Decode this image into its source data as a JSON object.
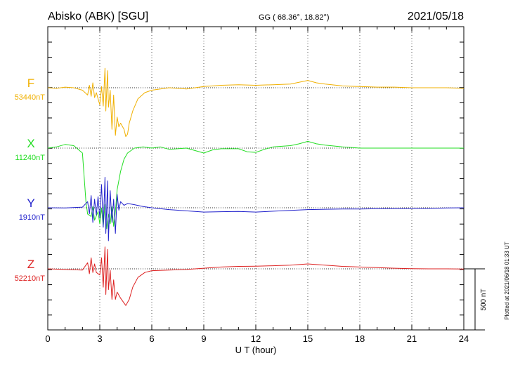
{
  "header": {
    "station": "Abisko (ABK)  [SGU]",
    "coords": "GG ( 68.36°,  18.82°)",
    "date": "2021/05/18"
  },
  "side_note": "Plotted at 2021/06/18 01:33 UT",
  "chart_data": {
    "type": "line",
    "title": "Abisko (ABK)  [SGU]",
    "xlabel": "U T (hour)",
    "x_ticks": [
      "0",
      "3",
      "6",
      "9",
      "12",
      "15",
      "18",
      "21",
      "24"
    ],
    "xlim": [
      0,
      24
    ],
    "scale_label": "500 nT",
    "scale_nT": 500,
    "grid": true,
    "series": [
      {
        "name": "F",
        "baseline_label": "53440nT",
        "baseline_nT": 53440,
        "color": "#f0b000",
        "points": [
          [
            0,
            53440
          ],
          [
            0.5,
            53435
          ],
          [
            1,
            53445
          ],
          [
            1.5,
            53440
          ],
          [
            2,
            53420
          ],
          [
            2.3,
            53380
          ],
          [
            2.4,
            53460
          ],
          [
            2.5,
            53370
          ],
          [
            2.6,
            53480
          ],
          [
            2.7,
            53360
          ],
          [
            2.8,
            53400
          ],
          [
            3,
            53300
          ],
          [
            3.1,
            53450
          ],
          [
            3.2,
            53290
          ],
          [
            3.3,
            53600
          ],
          [
            3.35,
            53250
          ],
          [
            3.45,
            53580
          ],
          [
            3.5,
            53280
          ],
          [
            3.6,
            53420
          ],
          [
            3.7,
            53100
          ],
          [
            3.8,
            53380
          ],
          [
            3.9,
            53050
          ],
          [
            4,
            53200
          ],
          [
            4.1,
            53120
          ],
          [
            4.2,
            53150
          ],
          [
            4.4,
            53100
          ],
          [
            4.5,
            53040
          ],
          [
            4.6,
            53060
          ],
          [
            4.7,
            53150
          ],
          [
            4.9,
            53250
          ],
          [
            5.2,
            53350
          ],
          [
            5.6,
            53400
          ],
          [
            6,
            53420
          ],
          [
            7,
            53440
          ],
          [
            8,
            53430
          ],
          [
            9,
            53450
          ],
          [
            10,
            53460
          ],
          [
            11,
            53465
          ],
          [
            12,
            53460
          ],
          [
            13,
            53465
          ],
          [
            14,
            53470
          ],
          [
            15,
            53500
          ],
          [
            15.5,
            53480
          ],
          [
            16,
            53470
          ],
          [
            17,
            53455
          ],
          [
            18,
            53450
          ],
          [
            19,
            53445
          ],
          [
            20,
            53445
          ],
          [
            21,
            53440
          ],
          [
            22,
            53440
          ],
          [
            23,
            53440
          ],
          [
            24,
            53435
          ]
        ]
      },
      {
        "name": "X",
        "baseline_label": "11240nT",
        "baseline_nT": 11240,
        "color": "#22dd22",
        "points": [
          [
            0,
            11240
          ],
          [
            0.5,
            11250
          ],
          [
            1,
            11270
          ],
          [
            1.5,
            11260
          ],
          [
            2,
            11200
          ],
          [
            2.1,
            11000
          ],
          [
            2.2,
            10800
          ],
          [
            2.3,
            10700
          ],
          [
            2.5,
            10680
          ],
          [
            2.6,
            10760
          ],
          [
            2.7,
            10650
          ],
          [
            2.9,
            10720
          ],
          [
            3,
            10620
          ],
          [
            3.1,
            10750
          ],
          [
            3.2,
            10600
          ],
          [
            3.3,
            10780
          ],
          [
            3.4,
            10580
          ],
          [
            3.5,
            10700
          ],
          [
            3.6,
            10620
          ],
          [
            3.7,
            10760
          ],
          [
            3.8,
            10600
          ],
          [
            3.9,
            10720
          ],
          [
            4,
            10900
          ],
          [
            4.2,
            11050
          ],
          [
            4.4,
            11150
          ],
          [
            4.6,
            11200
          ],
          [
            5,
            11240
          ],
          [
            5.5,
            11250
          ],
          [
            6,
            11240
          ],
          [
            6.5,
            11250
          ],
          [
            7,
            11230
          ],
          [
            8,
            11240
          ],
          [
            9,
            11200
          ],
          [
            9.5,
            11225
          ],
          [
            10,
            11235
          ],
          [
            11,
            11235
          ],
          [
            11.5,
            11210
          ],
          [
            12,
            11205
          ],
          [
            12.5,
            11230
          ],
          [
            13,
            11250
          ],
          [
            14,
            11260
          ],
          [
            14.5,
            11275
          ],
          [
            15,
            11295
          ],
          [
            15.5,
            11275
          ],
          [
            16,
            11265
          ],
          [
            17,
            11250
          ],
          [
            18,
            11240
          ],
          [
            19,
            11240
          ],
          [
            20,
            11240
          ],
          [
            21,
            11240
          ],
          [
            22,
            11240
          ],
          [
            23,
            11240
          ],
          [
            24,
            11240
          ]
        ]
      },
      {
        "name": "Y",
        "baseline_label": "1910nT",
        "baseline_nT": 1910,
        "color": "#2222cc",
        "points": [
          [
            0,
            1910
          ],
          [
            1,
            1908
          ],
          [
            2,
            1915
          ],
          [
            2.3,
            1960
          ],
          [
            2.4,
            1860
          ],
          [
            2.5,
            2010
          ],
          [
            2.6,
            1790
          ],
          [
            2.7,
            1980
          ],
          [
            2.8,
            1850
          ],
          [
            2.9,
            2000
          ],
          [
            3,
            1830
          ],
          [
            3.1,
            2100
          ],
          [
            3.2,
            1750
          ],
          [
            3.3,
            2160
          ],
          [
            3.35,
            1700
          ],
          [
            3.45,
            2130
          ],
          [
            3.5,
            1640
          ],
          [
            3.6,
            2050
          ],
          [
            3.7,
            1790
          ],
          [
            3.8,
            1980
          ],
          [
            3.9,
            1700
          ],
          [
            4,
            2020
          ],
          [
            4.1,
            1890
          ],
          [
            4.2,
            1960
          ],
          [
            4.4,
            1930
          ],
          [
            4.6,
            1945
          ],
          [
            5,
            1935
          ],
          [
            5.5,
            1920
          ],
          [
            6,
            1910
          ],
          [
            7,
            1895
          ],
          [
            8,
            1885
          ],
          [
            9,
            1875
          ],
          [
            10,
            1878
          ],
          [
            11,
            1880
          ],
          [
            12,
            1875
          ],
          [
            13,
            1882
          ],
          [
            14,
            1888
          ],
          [
            15,
            1895
          ],
          [
            16,
            1898
          ],
          [
            17,
            1900
          ],
          [
            18,
            1900
          ],
          [
            19,
            1902
          ],
          [
            20,
            1903
          ],
          [
            21,
            1905
          ],
          [
            22,
            1905
          ],
          [
            23,
            1908
          ],
          [
            24,
            1910
          ]
        ]
      },
      {
        "name": "Z",
        "baseline_label": "52210nT",
        "baseline_nT": 52210,
        "color": "#dd2222",
        "points": [
          [
            0,
            52210
          ],
          [
            1,
            52205
          ],
          [
            2,
            52200
          ],
          [
            2.3,
            52260
          ],
          [
            2.4,
            52170
          ],
          [
            2.5,
            52300
          ],
          [
            2.6,
            52180
          ],
          [
            2.7,
            52250
          ],
          [
            2.8,
            52180
          ],
          [
            3,
            52160
          ],
          [
            3.1,
            52300
          ],
          [
            3.2,
            52060
          ],
          [
            3.3,
            52390
          ],
          [
            3.35,
            52000
          ],
          [
            3.45,
            52370
          ],
          [
            3.5,
            52040
          ],
          [
            3.6,
            52200
          ],
          [
            3.7,
            51960
          ],
          [
            3.8,
            52120
          ],
          [
            3.9,
            51960
          ],
          [
            4,
            52020
          ],
          [
            4.2,
            51970
          ],
          [
            4.4,
            51930
          ],
          [
            4.5,
            51910
          ],
          [
            4.7,
            51960
          ],
          [
            4.9,
            52060
          ],
          [
            5.2,
            52140
          ],
          [
            5.6,
            52180
          ],
          [
            6,
            52195
          ],
          [
            7,
            52200
          ],
          [
            8,
            52205
          ],
          [
            9,
            52215
          ],
          [
            10,
            52225
          ],
          [
            11,
            52230
          ],
          [
            12,
            52232
          ],
          [
            13,
            52235
          ],
          [
            14,
            52240
          ],
          [
            15,
            52250
          ],
          [
            16,
            52240
          ],
          [
            17,
            52230
          ],
          [
            18,
            52225
          ],
          [
            19,
            52220
          ],
          [
            20,
            52215
          ],
          [
            21,
            52212
          ],
          [
            22,
            52210
          ],
          [
            23,
            52210
          ],
          [
            24,
            52208
          ]
        ]
      }
    ]
  }
}
